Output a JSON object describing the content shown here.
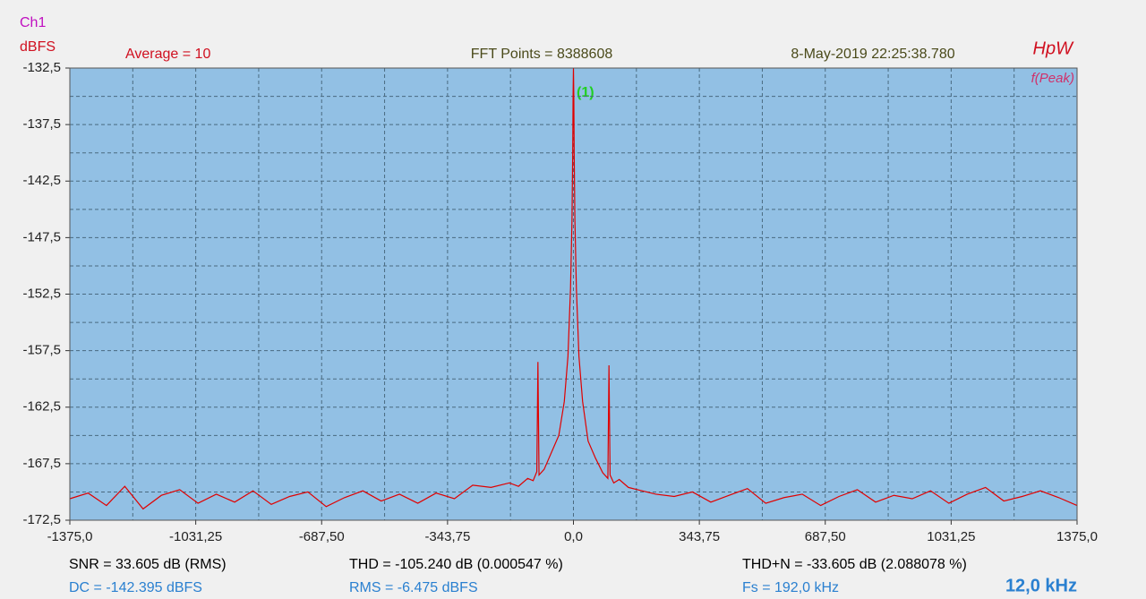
{
  "chart_data": {
    "type": "line",
    "channel": "Ch1",
    "y_axis_label": "dBFS",
    "average_label": "Average = 10",
    "fft_label": "FFT Points = 8388608",
    "timestamp": "8-May-2019 22:25:38.780",
    "brand": "HpW",
    "peak_label": "f(Peak)",
    "marker_label": "(1)",
    "stats": [
      [
        "SNR = 33.605 dB (RMS)",
        "THD = -105.240 dB (0.000547 %)",
        "THD+N = -33.605 dB (2.088078 %)"
      ],
      [
        "DC = -142.395 dBFS",
        "RMS = -6.475 dBFS",
        "Fs = 192,0 kHz"
      ]
    ],
    "span_label": "12,0 kHz",
    "color": "#e00000",
    "xlim": [
      -1375,
      1375
    ],
    "ylim": [
      -172.5,
      -132.5
    ],
    "xticks": [
      {
        "value": -1375,
        "label": "-1375,0"
      },
      {
        "value": -1031.25,
        "label": "-1031,25"
      },
      {
        "value": -687.5,
        "label": "-687,50"
      },
      {
        "value": -343.75,
        "label": "-343,75"
      },
      {
        "value": 0,
        "label": "0,0"
      },
      {
        "value": 343.75,
        "label": "343,75"
      },
      {
        "value": 687.5,
        "label": "687,50"
      },
      {
        "value": 1031.25,
        "label": "1031,25"
      },
      {
        "value": 1375,
        "label": "1375,0"
      }
    ],
    "yticks": [
      {
        "value": -172.5,
        "label": "-172,5"
      },
      {
        "value": -167.5,
        "label": "-167,5"
      },
      {
        "value": -162.5,
        "label": "-162,5"
      },
      {
        "value": -157.5,
        "label": "-157,5"
      },
      {
        "value": -152.5,
        "label": "-152,5"
      },
      {
        "value": -147.5,
        "label": "-147,5"
      },
      {
        "value": -142.5,
        "label": "-142,5"
      },
      {
        "value": -137.5,
        "label": "-137,5"
      },
      {
        "value": -132.5,
        "label": "-132,5"
      }
    ],
    "xminorticks": [
      -1203.125,
      -859.375,
      -515.625,
      -171.875,
      171.875,
      515.625,
      859.375,
      1203.125
    ],
    "yminorticks": [
      -170,
      -165,
      -160,
      -155,
      -150,
      -145,
      -140,
      -135
    ],
    "grid": true,
    "x": [
      -1375,
      -1325,
      -1275,
      -1225,
      -1175,
      -1125,
      -1075,
      -1025,
      -975,
      -925,
      -875,
      -825,
      -775,
      -725,
      -675,
      -625,
      -575,
      -525,
      -475,
      -425,
      -375,
      -325,
      -275,
      -225,
      -175,
      -150,
      -125,
      -110,
      -100,
      -97,
      -94,
      -80,
      -60,
      -40,
      -25,
      -15,
      -8,
      -4,
      -2,
      -1,
      0,
      1,
      2,
      4,
      8,
      15,
      25,
      40,
      60,
      80,
      94,
      97,
      100,
      110,
      125,
      150,
      175,
      225,
      275,
      325,
      375,
      425,
      475,
      525,
      575,
      625,
      675,
      725,
      775,
      825,
      875,
      925,
      975,
      1025,
      1075,
      1125,
      1175,
      1225,
      1275,
      1325,
      1375
    ],
    "values": [
      -170.6,
      -170.1,
      -171.2,
      -169.5,
      -171.5,
      -170.3,
      -169.8,
      -171.0,
      -170.2,
      -170.9,
      -169.9,
      -171.1,
      -170.4,
      -170.0,
      -171.3,
      -170.5,
      -169.9,
      -170.8,
      -170.2,
      -171.0,
      -170.1,
      -170.6,
      -169.4,
      -169.6,
      -169.2,
      -169.5,
      -168.8,
      -169.0,
      -168.2,
      -158.5,
      -168.5,
      -168.0,
      -166.5,
      -165,
      -162,
      -158,
      -152,
      -146,
      -140,
      -135,
      -132.5,
      -135,
      -140,
      -146,
      -152,
      -158,
      -162,
      -165.5,
      -167,
      -168.3,
      -168.8,
      -158.8,
      -168.5,
      -169.2,
      -168.9,
      -169.6,
      -169.8,
      -170.2,
      -170.4,
      -170.0,
      -170.9,
      -170.3,
      -169.7,
      -171.0,
      -170.5,
      -170.2,
      -171.2,
      -170.4,
      -169.8,
      -170.9,
      -170.3,
      -170.6,
      -169.9,
      -171.0,
      -170.2,
      -169.6,
      -170.8,
      -170.4,
      -169.9,
      -170.5,
      -171.2
    ]
  }
}
